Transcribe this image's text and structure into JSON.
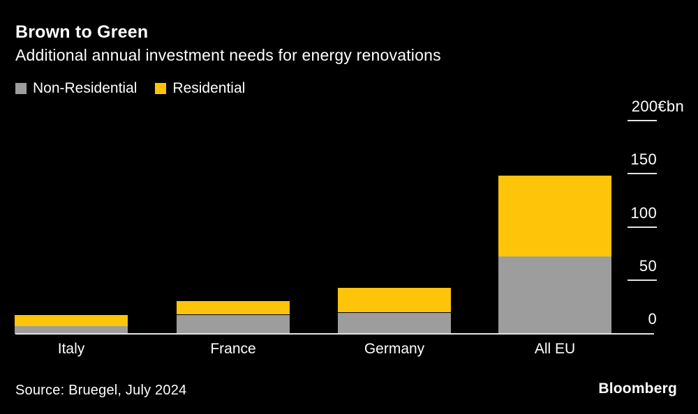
{
  "header": {
    "title": "Brown to Green",
    "subtitle": "Additional annual investment needs for energy renovations"
  },
  "chart_data": {
    "type": "bar",
    "stacked": true,
    "categories": [
      "Italy",
      "France",
      "Germany",
      "All EU"
    ],
    "series": [
      {
        "name": "Non-Residential",
        "color": "#9d9d9d",
        "values": [
          7,
          18,
          20,
          73
        ]
      },
      {
        "name": "Residential",
        "color": "#fdc40a",
        "values": [
          11,
          13,
          23,
          76
        ]
      }
    ],
    "unit": "€bn",
    "yticks": [
      0,
      50,
      100,
      150,
      200
    ],
    "ytick_labels": [
      "0",
      "50",
      "100",
      "150",
      "200€bn"
    ],
    "ylim": [
      0,
      200
    ],
    "axis_side": "right",
    "grid": false,
    "legend_position": "top-left",
    "axis_color": "#e3e3e3",
    "text_color": "#ffffff",
    "background_color": "#000000"
  },
  "footer": {
    "source": "Source: Bruegel, July 2024",
    "brand": "Bloomberg"
  }
}
